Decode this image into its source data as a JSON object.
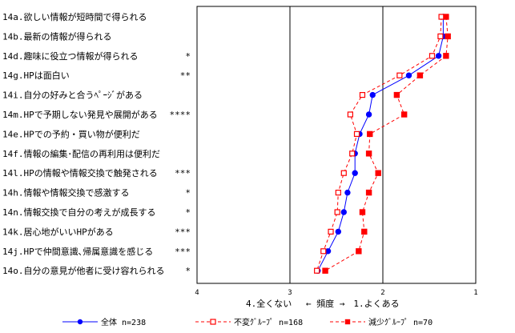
{
  "chart_data": {
    "type": "line",
    "orientation": "horizontal",
    "categories": [
      "14a.欲しい情報が短時間で得られる",
      "14b.最新の情報が得られる",
      "14d.趣味に役立つ情報が得られる",
      "14g.HPは面白い",
      "14i.自分の好みと合うﾍﾟｰｼﾞがある",
      "14m.HPで予期しない発見や展開がある",
      "14e.HPでの予約・買い物が便利だ",
      "14f.情報の編集･配信の再利用は便利だ",
      "14l.HPの情報や情報交換で触発される",
      "14h.情報や情報交換で感激する",
      "14n.情報交換で自分の考えが成長する",
      "14k.居心地がいいHPがある",
      "14j.HPで仲間意識､帰属意識を感じる",
      "14o.自分の意見が他者に受け容れられる"
    ],
    "significance": [
      "",
      "",
      "*",
      "**",
      "",
      "****",
      "",
      "",
      "***",
      "*",
      "*",
      "***",
      "***",
      "*"
    ],
    "series": [
      {
        "name": "全体 n=238",
        "color": "#0000ff",
        "marker": "circle-filled",
        "line": "solid",
        "values": [
          1.35,
          1.35,
          1.4,
          1.72,
          2.11,
          2.15,
          2.25,
          2.3,
          2.3,
          2.38,
          2.42,
          2.48,
          2.59,
          2.7
        ]
      },
      {
        "name": "不変ｸﾞﾙｰﾌﾟ n=168",
        "color": "#ff0000",
        "marker": "square-open",
        "line": "dashed",
        "values": [
          1.37,
          1.38,
          1.47,
          1.82,
          2.22,
          2.35,
          2.28,
          2.33,
          2.42,
          2.48,
          2.49,
          2.56,
          2.64,
          2.71
        ]
      },
      {
        "name": "減少ｸﾞﾙｰﾌﾟ n=70",
        "color": "#ff0000",
        "marker": "square-filled",
        "line": "dashed",
        "values": [
          1.32,
          1.3,
          1.32,
          1.6,
          1.85,
          1.77,
          2.14,
          2.15,
          2.05,
          2.15,
          2.22,
          2.2,
          2.26,
          2.62
        ]
      }
    ],
    "xlim": [
      4,
      1
    ],
    "xticks": [
      "4",
      "3",
      "2",
      "1"
    ],
    "xlabel": "4.全くない　 ← 頻度 →　1.よくある",
    "gridlines_at": [
      3,
      2
    ],
    "legend_position": "bottom"
  }
}
